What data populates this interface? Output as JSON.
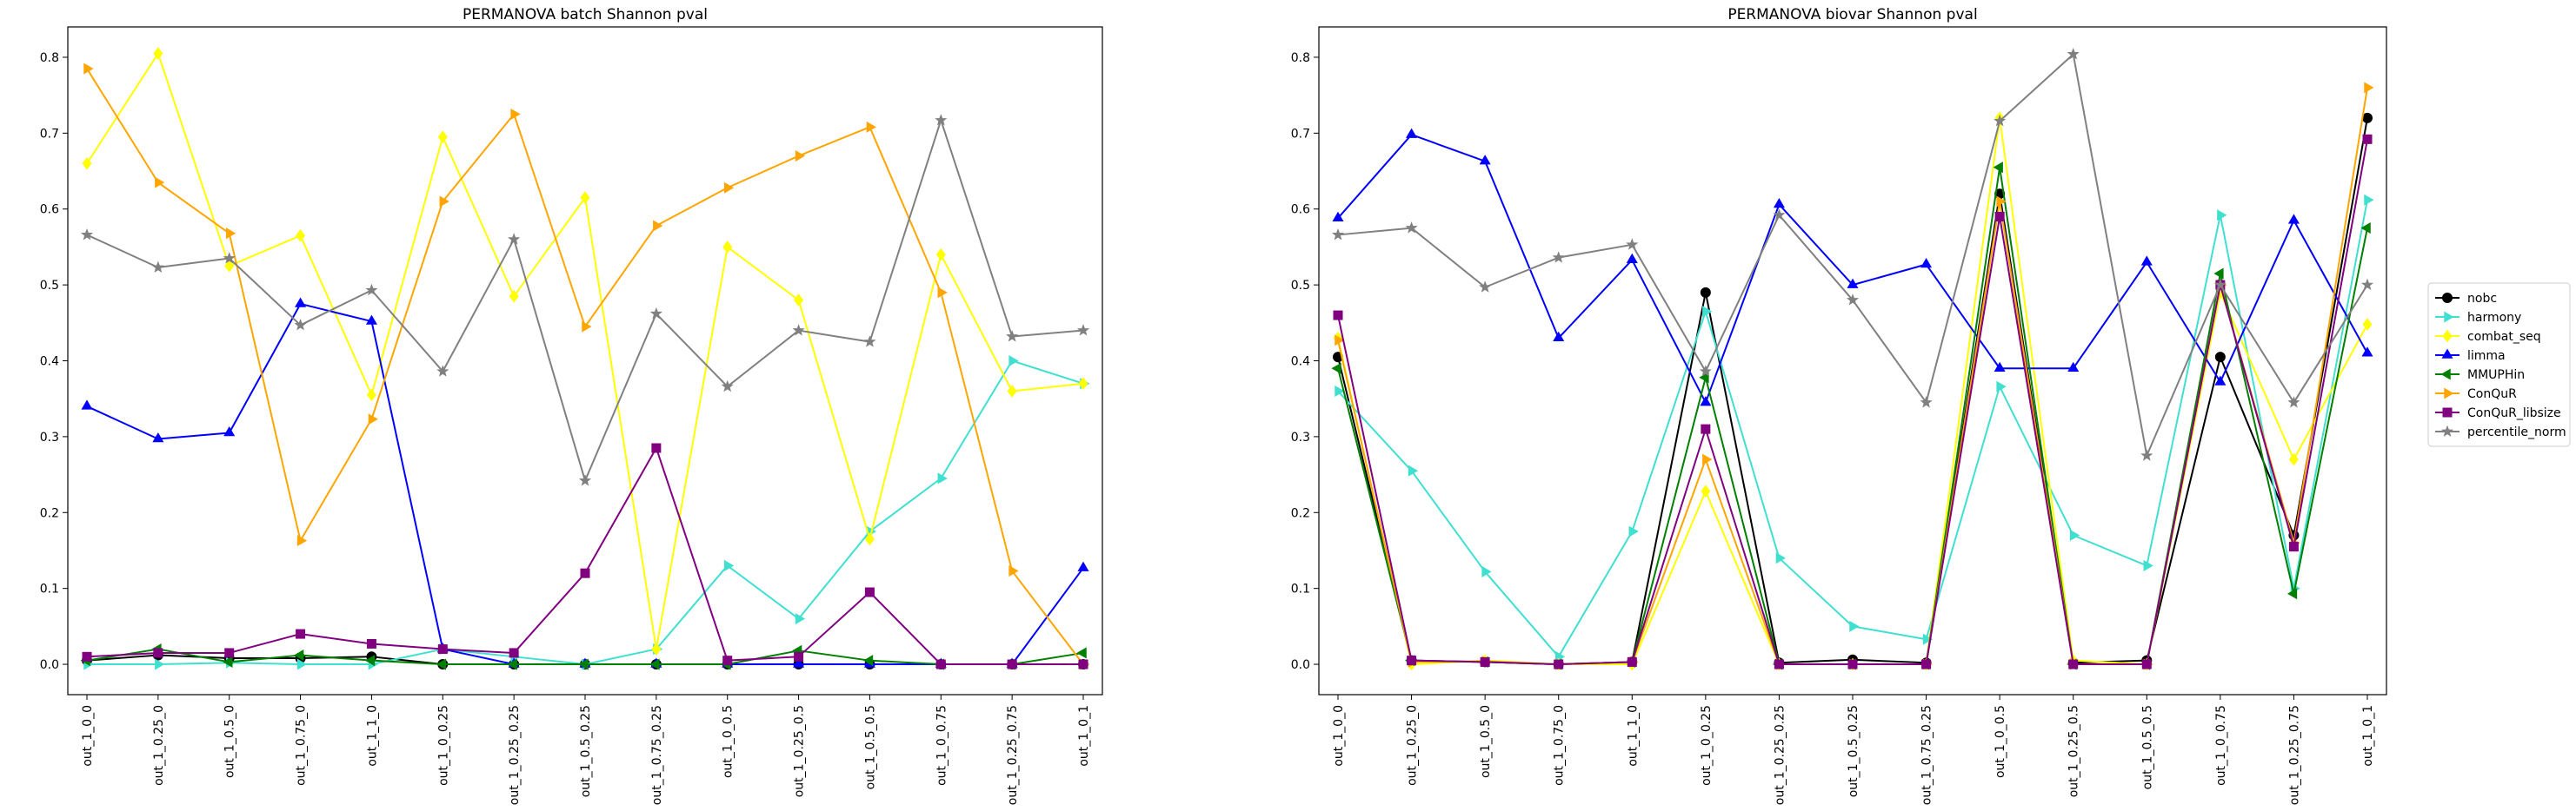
{
  "chart_data": [
    {
      "type": "line",
      "title": "PERMANOVA batch Shannon pval",
      "xlabel": "",
      "ylabel": "",
      "ylim": [
        -0.04,
        0.84
      ],
      "yticks": [
        "0.0",
        "0.1",
        "0.2",
        "0.3",
        "0.4",
        "0.5",
        "0.6",
        "0.7",
        "0.8"
      ],
      "ytick_values": [
        0,
        0.1,
        0.2,
        0.3,
        0.4,
        0.5,
        0.6,
        0.7,
        0.8
      ],
      "grid": false,
      "categories": [
        "out_1_0_0",
        "out_1_0.25_0",
        "out_1_0.5_0",
        "out_1_0.75_0",
        "out_1_1_0",
        "out_1_0_0.25",
        "out_1_0.25_0.25",
        "out_1_0.5_0.25",
        "out_1_0.75_0.25",
        "out_1_0_0.5",
        "out_1_0.25_0.5",
        "out_1_0.5_0.5",
        "out_1_0_0.75",
        "out_1_0.25_0.75",
        "out_1_0_1"
      ],
      "series": [
        {
          "name": "nobc",
          "color": "#000000",
          "marker": "circle",
          "values": [
            0.005,
            0.012,
            0.008,
            0.008,
            0.01,
            0.0,
            0.0,
            0.0,
            0.0,
            0.0,
            0.0,
            0.0,
            0.0,
            0.0,
            0.0
          ]
        },
        {
          "name": "harmony",
          "color": "#40e0d0",
          "marker": "tri-right",
          "values": [
            0.0,
            0.0,
            0.002,
            0.0,
            0.0,
            0.02,
            0.01,
            0.0,
            0.02,
            0.13,
            0.06,
            0.175,
            0.245,
            0.4,
            0.37
          ]
        },
        {
          "name": "combat_seq",
          "color": "#ffff00",
          "marker": "diamond",
          "values": [
            0.66,
            0.805,
            0.525,
            0.565,
            0.355,
            0.695,
            0.485,
            0.615,
            0.02,
            0.55,
            0.48,
            0.165,
            0.54,
            0.36,
            0.37
          ]
        },
        {
          "name": "limma",
          "color": "#0000ff",
          "marker": "tri-up",
          "values": [
            0.34,
            0.297,
            0.305,
            0.475,
            0.452,
            0.02,
            0.0,
            0.0,
            0.0,
            0.0,
            0.0,
            0.0,
            0.0,
            0.0,
            0.127
          ]
        },
        {
          "name": "MMUPHin",
          "color": "#008000",
          "marker": "tri-left",
          "values": [
            0.005,
            0.02,
            0.003,
            0.012,
            0.005,
            0.0,
            0.0,
            0.0,
            0.0,
            0.0,
            0.018,
            0.005,
            0.0,
            0.0,
            0.015
          ]
        },
        {
          "name": "ConQuR",
          "color": "#ffa500",
          "marker": "tri-right",
          "values": [
            0.785,
            0.635,
            0.568,
            0.163,
            0.323,
            0.61,
            0.725,
            0.445,
            0.578,
            0.628,
            0.67,
            0.708,
            0.49,
            0.123,
            0.0
          ]
        },
        {
          "name": "ConQuR_libsize",
          "color": "#800080",
          "marker": "square",
          "values": [
            0.01,
            0.015,
            0.015,
            0.04,
            0.027,
            0.02,
            0.015,
            0.12,
            0.285,
            0.005,
            0.01,
            0.095,
            0.0,
            0.0,
            0.0
          ]
        },
        {
          "name": "percentile_norm",
          "color": "#808080",
          "marker": "star",
          "values": [
            0.566,
            0.523,
            0.535,
            0.447,
            0.493,
            0.386,
            0.56,
            0.242,
            0.462,
            0.366,
            0.44,
            0.425,
            0.717,
            0.432,
            0.44
          ]
        }
      ]
    },
    {
      "type": "line",
      "title": "PERMANOVA biovar Shannon pval",
      "xlabel": "",
      "ylabel": "",
      "ylim": [
        -0.04,
        0.84
      ],
      "yticks": [
        "0.0",
        "0.1",
        "0.2",
        "0.3",
        "0.4",
        "0.5",
        "0.6",
        "0.7",
        "0.8"
      ],
      "ytick_values": [
        0,
        0.1,
        0.2,
        0.3,
        0.4,
        0.5,
        0.6,
        0.7,
        0.8
      ],
      "grid": false,
      "legend_position": "outside-right",
      "categories": [
        "out_1_0_0",
        "out_1_0.25_0",
        "out_1_0.5_0",
        "out_1_0.75_0",
        "out_1_1_0",
        "out_1_0_0.25",
        "out_1_0.25_0.25",
        "out_1_0.5_0.25",
        "out_1_0.75_0.25",
        "out_1_0_0.5",
        "out_1_0.25_0.5",
        "out_1_0.5_0.5",
        "out_1_0_0.75",
        "out_1_0.25_0.75",
        "out_1_0_1"
      ],
      "series": [
        {
          "name": "nobc",
          "color": "#000000",
          "marker": "circle",
          "values": [
            0.405,
            0.005,
            0.003,
            0.0,
            0.003,
            0.49,
            0.002,
            0.006,
            0.002,
            0.62,
            0.002,
            0.005,
            0.405,
            0.17,
            0.72
          ]
        },
        {
          "name": "harmony",
          "color": "#40e0d0",
          "marker": "tri-right",
          "values": [
            0.36,
            0.255,
            0.122,
            0.01,
            0.175,
            0.465,
            0.14,
            0.05,
            0.033,
            0.366,
            0.17,
            0.13,
            0.592,
            0.1,
            0.612
          ]
        },
        {
          "name": "combat_seq",
          "color": "#ffff00",
          "marker": "diamond",
          "values": [
            0.43,
            0.0,
            0.005,
            0.0,
            0.0,
            0.228,
            0.0,
            0.0,
            0.0,
            0.72,
            0.005,
            0.0,
            0.49,
            0.27,
            0.448
          ]
        },
        {
          "name": "limma",
          "color": "#0000ff",
          "marker": "tri-up",
          "values": [
            0.588,
            0.698,
            0.663,
            0.43,
            0.533,
            0.345,
            0.606,
            0.5,
            0.527,
            0.39,
            0.39,
            0.53,
            0.372,
            0.585,
            0.41
          ]
        },
        {
          "name": "MMUPHin",
          "color": "#008000",
          "marker": "tri-left",
          "values": [
            0.39,
            0.005,
            0.003,
            0.0,
            0.003,
            0.378,
            0.0,
            0.0,
            0.0,
            0.655,
            0.0,
            0.0,
            0.515,
            0.093,
            0.575
          ]
        },
        {
          "name": "ConQuR",
          "color": "#ffa500",
          "marker": "tri-right",
          "values": [
            0.427,
            0.003,
            0.004,
            0.0,
            0.003,
            0.27,
            0.0,
            0.0,
            0.0,
            0.61,
            0.0,
            0.0,
            0.5,
            0.16,
            0.76
          ]
        },
        {
          "name": "ConQuR_libsize",
          "color": "#800080",
          "marker": "square",
          "values": [
            0.46,
            0.005,
            0.003,
            0.0,
            0.003,
            0.31,
            0.0,
            0.0,
            0.0,
            0.59,
            0.0,
            0.0,
            0.5,
            0.155,
            0.692
          ]
        },
        {
          "name": "percentile_norm",
          "color": "#808080",
          "marker": "star",
          "values": [
            0.566,
            0.575,
            0.497,
            0.536,
            0.553,
            0.386,
            0.592,
            0.48,
            0.345,
            0.716,
            0.804,
            0.275,
            0.5,
            0.345,
            0.5
          ]
        }
      ]
    }
  ]
}
